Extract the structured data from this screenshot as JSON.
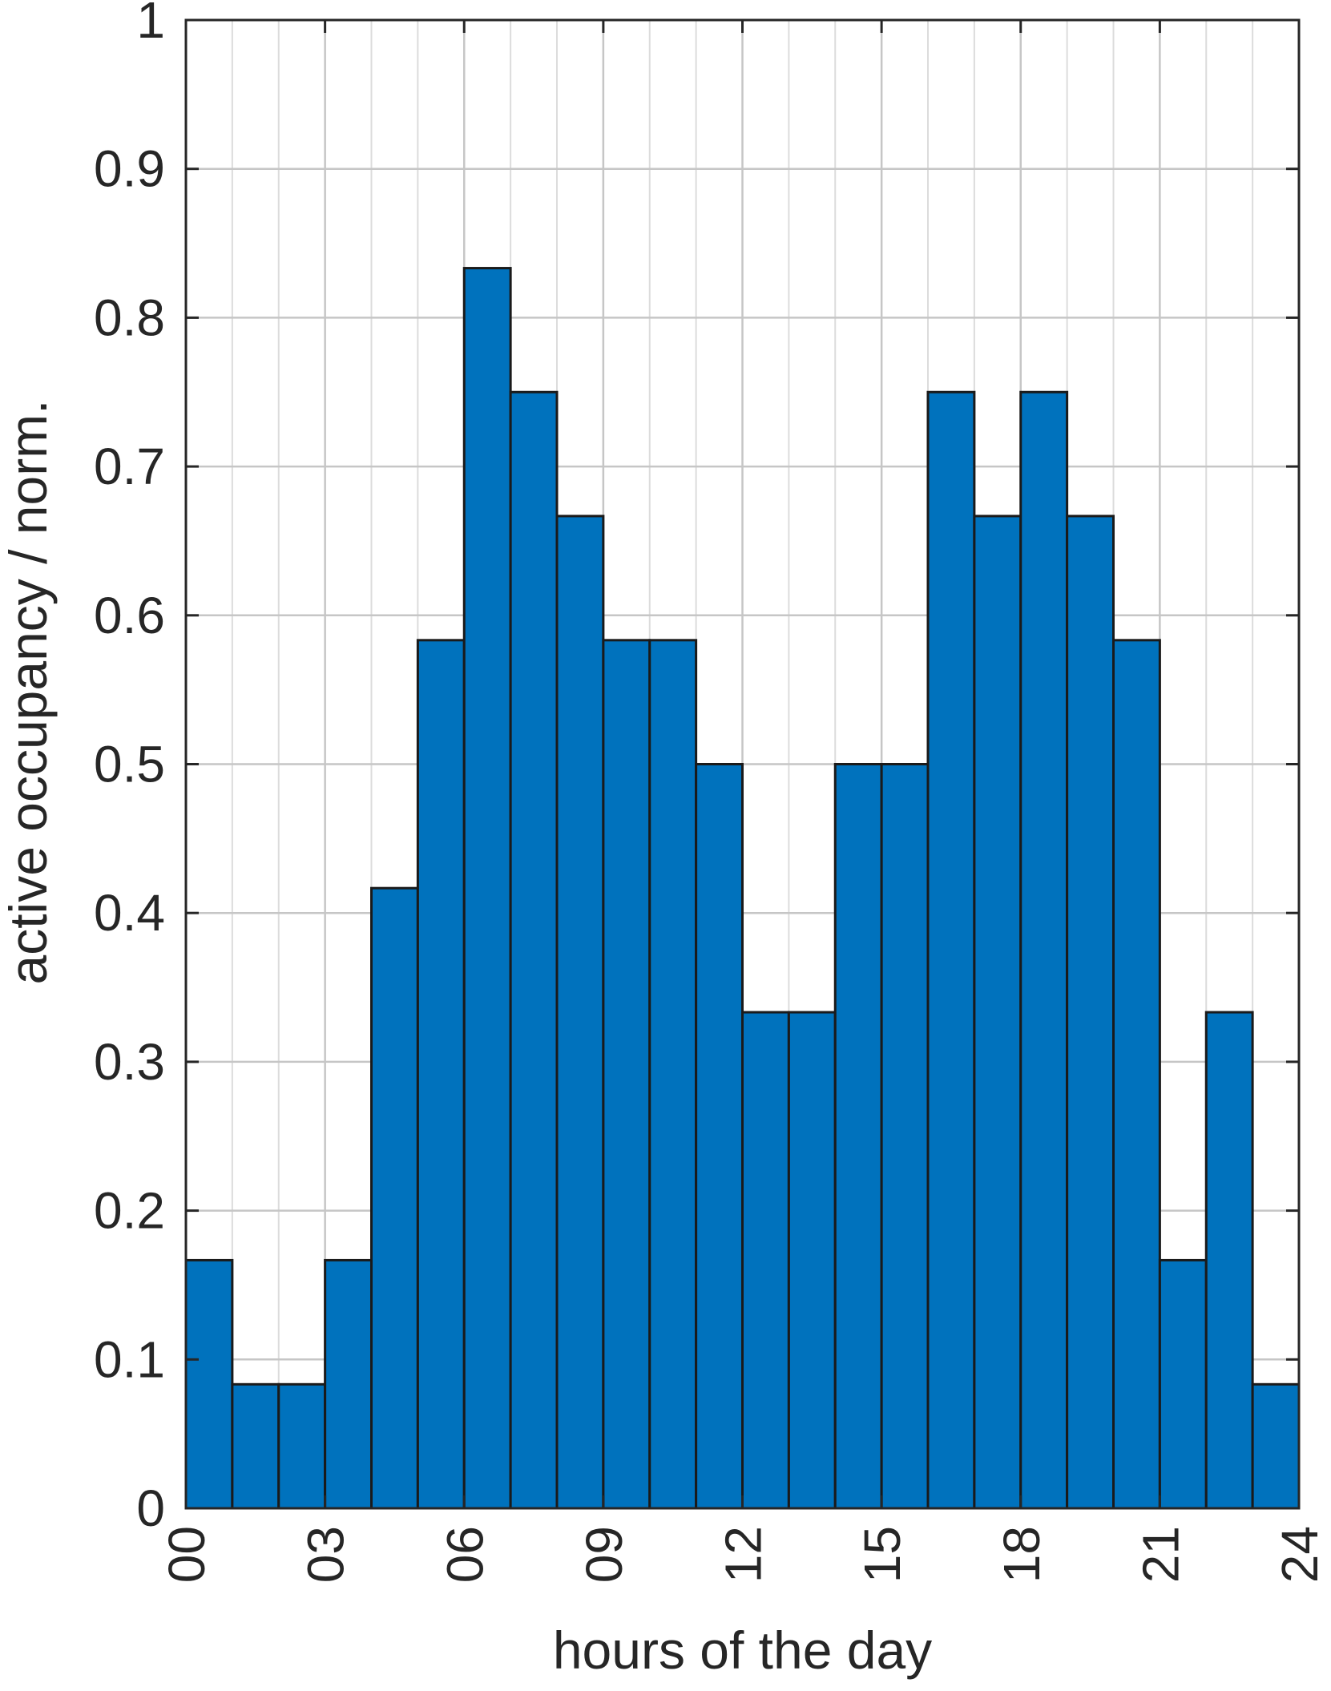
{
  "chart_data": {
    "type": "bar",
    "xlabel": "hours of the day",
    "ylabel": "active occupancy / norm.",
    "xlim": [
      -0.5,
      23.5
    ],
    "ylim": [
      0,
      1
    ],
    "x_ticks": [
      -0.5,
      2.5,
      5.5,
      8.5,
      11.5,
      14.5,
      17.5,
      20.5,
      23.5
    ],
    "x_tick_labels": [
      "00",
      "03",
      "06",
      "09",
      "12",
      "15",
      "18",
      "21",
      "24"
    ],
    "y_ticks": [
      0,
      0.1,
      0.2,
      0.3,
      0.4,
      0.5,
      0.6,
      0.7,
      0.8,
      0.9,
      1
    ],
    "y_tick_labels": [
      "0",
      "0.1",
      "0.2",
      "0.3",
      "0.4",
      "0.5",
      "0.6",
      "0.7",
      "0.8",
      "0.9",
      "1"
    ],
    "categories": [
      0,
      1,
      2,
      3,
      4,
      5,
      6,
      7,
      8,
      9,
      10,
      11,
      12,
      13,
      14,
      15,
      16,
      17,
      18,
      19,
      20,
      21,
      22,
      23
    ],
    "values": [
      0.1667,
      0.0833,
      0.0833,
      0.1667,
      0.4167,
      0.5833,
      0.8333,
      0.75,
      0.6667,
      0.5833,
      0.5833,
      0.5,
      0.3333,
      0.3333,
      0.5,
      0.5,
      0.75,
      0.6667,
      0.75,
      0.6667,
      0.5833,
      0.1667,
      0.3333,
      0.0833
    ],
    "grid": true,
    "minor_grid_x": true,
    "bar_color": "#0072BD",
    "edge_color": "#1a1a1a"
  }
}
